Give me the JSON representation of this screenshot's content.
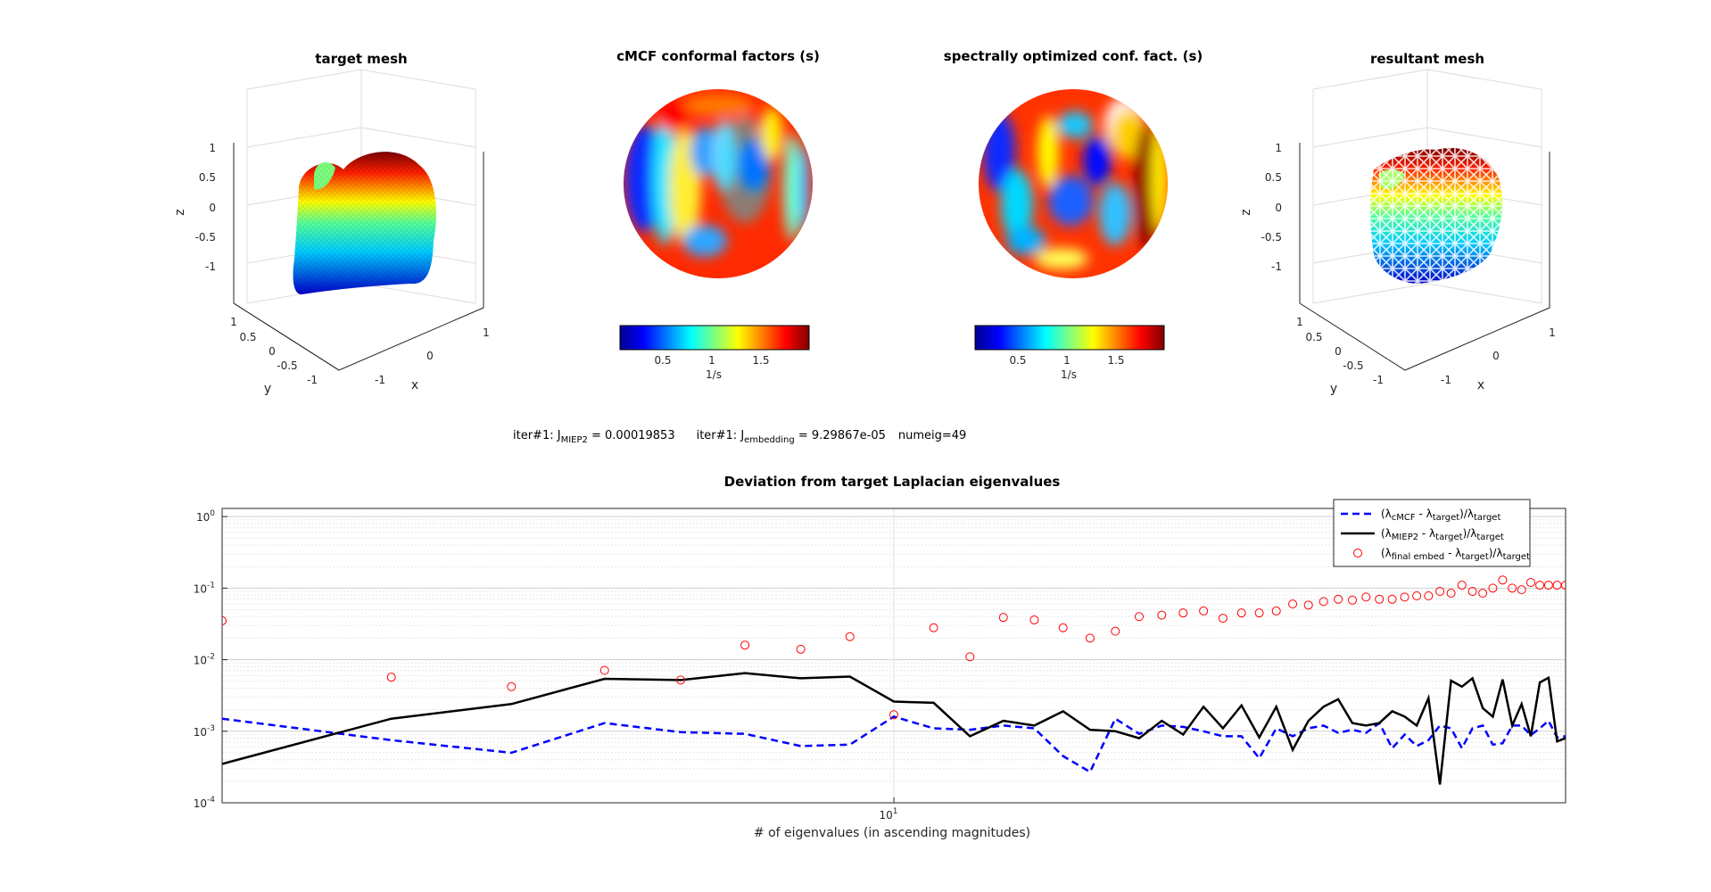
{
  "panels": {
    "target_mesh": {
      "title": "target mesh",
      "z_ticks": [
        "1",
        "0.5",
        "0",
        "-0.5",
        "-1"
      ],
      "y_ticks": [
        "1",
        "0.5",
        "0",
        "-0.5",
        "-1"
      ],
      "x_ticks": [
        "-1",
        "0",
        "1"
      ],
      "xlabel": "x",
      "ylabel": "y",
      "zlabel": "z"
    },
    "cmcf": {
      "title": "cMCF conformal factors (s)",
      "colorbar_ticks": [
        "0.5",
        "1",
        "1.5"
      ],
      "colorbar_label": "1/s"
    },
    "spectral": {
      "title": "spectrally optimized conf. fact. (s)",
      "colorbar_ticks": [
        "0.5",
        "1",
        "1.5"
      ],
      "colorbar_label": "1/s"
    },
    "resultant_mesh": {
      "title": "resultant mesh",
      "z_ticks": [
        "1",
        "0.5",
        "0",
        "-0.5",
        "-1"
      ],
      "y_ticks": [
        "1",
        "0.5",
        "0",
        "-0.5",
        "-1"
      ],
      "x_ticks": [
        "-1",
        "0",
        "1"
      ],
      "xlabel": "x",
      "ylabel": "y",
      "zlabel": "z"
    }
  },
  "status": {
    "iter_miep_prefix": "iter#1: J",
    "iter_miep_sub": "MIEP2",
    "iter_miep_value": " = 0.00019853",
    "iter_embed_prefix": "iter#1: J",
    "iter_embed_sub": "embedding",
    "iter_embed_value": " = 9.29867e-05",
    "numeig": "numeig=49"
  },
  "chart_data": {
    "type": "line",
    "title": "Deviation from target Laplacian eigenvalues",
    "xlabel": "# of eigenvalues (in ascending magnitudes)",
    "ylabel": "",
    "xscale": "log",
    "yscale": "log",
    "xlim": [
      2,
      50
    ],
    "ylim": [
      0.0001,
      1.3
    ],
    "grid": true,
    "x_tick_labels": [
      {
        "base": "10",
        "exp": "1",
        "value": 10
      }
    ],
    "y_tick_labels": [
      {
        "base": "10",
        "exp": "-4",
        "value": 0.0001
      },
      {
        "base": "10",
        "exp": "-3",
        "value": 0.001
      },
      {
        "base": "10",
        "exp": "-2",
        "value": 0.01
      },
      {
        "base": "10",
        "exp": "-1",
        "value": 0.1
      },
      {
        "base": "10",
        "exp": "0",
        "value": 1
      }
    ],
    "legend_position": "top-right",
    "x": [
      2,
      3,
      4,
      5,
      6,
      7,
      8,
      9,
      10,
      11,
      12,
      13,
      14,
      15,
      16,
      17,
      18,
      19,
      20,
      21,
      22,
      23,
      24,
      25,
      26,
      27,
      28,
      29,
      30,
      31,
      32,
      33,
      34,
      35,
      36,
      37,
      38,
      39,
      40,
      41,
      42,
      43,
      44,
      45,
      46,
      47,
      48,
      49,
      50
    ],
    "series": [
      {
        "name": "cMCF",
        "legend": {
          "pre": "(λ",
          "sub1": "cMCF",
          "mid": " - λ",
          "sub2": "target",
          "post": ")/λ",
          "sub3": "target"
        },
        "style": "dashed",
        "color": "#0000ff",
        "values": [
          0.0015,
          0.00075,
          0.0005,
          0.0013,
          0.00097,
          0.00092,
          0.00062,
          0.00065,
          0.0016,
          0.0011,
          0.00105,
          0.0012,
          0.0011,
          0.00045,
          0.00027,
          0.0015,
          0.00092,
          0.0012,
          0.00115,
          0.001,
          0.00085,
          0.00085,
          0.00042,
          0.0011,
          0.00085,
          0.0011,
          0.0012,
          0.00095,
          0.00105,
          0.00095,
          0.0013,
          0.00058,
          0.0009,
          0.00062,
          0.00075,
          0.0012,
          0.0011,
          0.00058,
          0.0011,
          0.0012,
          0.00065,
          0.00068,
          0.0012,
          0.0012,
          0.00088,
          0.0011,
          0.0014,
          0.00082,
          0.00085
        ]
      },
      {
        "name": "MIEP2",
        "legend": {
          "pre": "(λ",
          "sub1": "MIEP2",
          "mid": " - λ",
          "sub2": "target",
          "post": ")/λ",
          "sub3": "target"
        },
        "style": "solid",
        "color": "#000000",
        "values": [
          0.00035,
          0.0015,
          0.0024,
          0.0054,
          0.0052,
          0.0065,
          0.0055,
          0.0058,
          0.0026,
          0.0025,
          0.00085,
          0.0014,
          0.0012,
          0.0019,
          0.00105,
          0.001,
          0.0008,
          0.0014,
          0.0009,
          0.0022,
          0.0011,
          0.0023,
          0.00082,
          0.0022,
          0.00055,
          0.0014,
          0.0022,
          0.0028,
          0.0013,
          0.0012,
          0.0013,
          0.0019,
          0.0016,
          0.0012,
          0.0029,
          0.00018,
          0.0051,
          0.0042,
          0.0055,
          0.0021,
          0.0016,
          0.0053,
          0.0012,
          0.0024,
          0.00085,
          0.0048,
          0.0056,
          0.00072,
          0.0008
        ]
      },
      {
        "name": "final embed",
        "legend": {
          "pre": "(λ",
          "sub1": "final embed",
          "mid": " - λ",
          "sub2": "target",
          "post": ")/λ",
          "sub3": "target"
        },
        "style": "markers",
        "marker": "circle",
        "color": "#ff0000",
        "values": [
          0.035,
          0.0057,
          0.0042,
          0.0071,
          0.0052,
          0.016,
          0.014,
          0.021,
          0.0017,
          0.028,
          0.011,
          0.039,
          0.036,
          0.028,
          0.02,
          0.025,
          0.04,
          0.042,
          0.045,
          0.048,
          0.038,
          0.045,
          0.045,
          0.048,
          0.06,
          0.058,
          0.065,
          0.07,
          0.068,
          0.075,
          0.07,
          0.07,
          0.075,
          0.078,
          0.078,
          0.09,
          0.085,
          0.11,
          0.09,
          0.085,
          0.1,
          0.13,
          0.1,
          0.095,
          0.12,
          0.11,
          0.11,
          0.11,
          0.11
        ]
      }
    ]
  }
}
